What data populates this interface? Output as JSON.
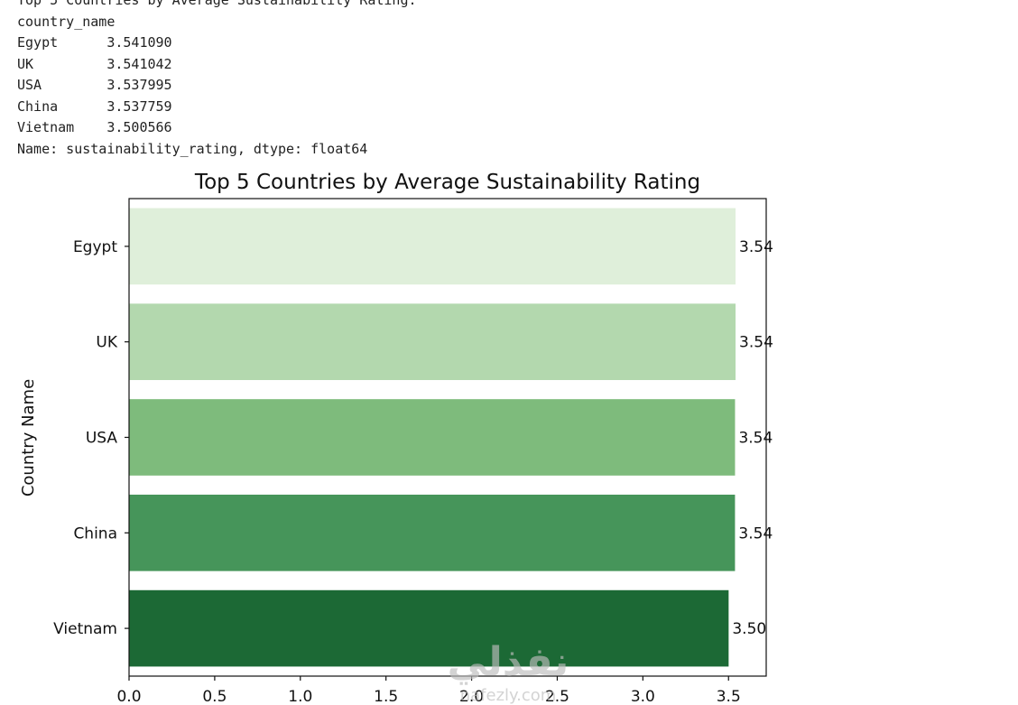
{
  "console": {
    "lines": [
      "Top 5 Countries by Average Sustainability Rating:",
      "country_name",
      "Egypt      3.541090",
      "UK         3.541042",
      "USA        3.537995",
      "China      3.537759",
      "Vietnam    3.500566",
      "Name: sustainability_rating, dtype: float64"
    ]
  },
  "chart_data": {
    "type": "bar",
    "orientation": "horizontal",
    "title": "Top 5 Countries by Average Sustainability Rating",
    "xlabel": "",
    "ylabel": "Country Name",
    "categories": [
      "Egypt",
      "UK",
      "USA",
      "China",
      "Vietnam"
    ],
    "values": [
      3.54109,
      3.541042,
      3.537995,
      3.537759,
      3.500566
    ],
    "data_labels": [
      "3.54",
      "3.54",
      "3.54",
      "3.54",
      "3.50"
    ],
    "bar_colors": [
      "#dfefda",
      "#b3d8ae",
      "#7ebb7c",
      "#46955a",
      "#1c6935"
    ],
    "xlim": [
      0,
      3.72
    ],
    "xticks": [
      0.0,
      0.5,
      1.0,
      1.5,
      2.0,
      2.5,
      3.0,
      3.5
    ],
    "xtick_labels": [
      "0.0",
      "0.5",
      "1.0",
      "1.5",
      "2.0",
      "2.5",
      "3.0",
      "3.5"
    ],
    "grid": false
  },
  "watermark": {
    "text": "نفذلي",
    "subtext": "nafezly.com"
  }
}
